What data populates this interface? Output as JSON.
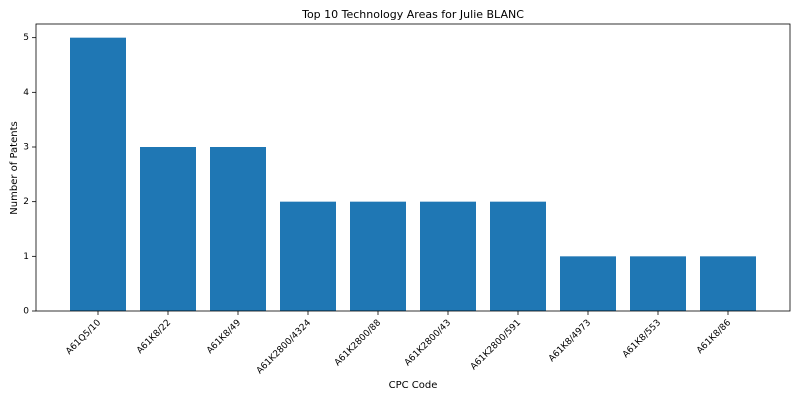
{
  "chart_data": {
    "type": "bar",
    "title": "Top 10 Technology Areas for Julie BLANC",
    "x_label": "CPC Code",
    "y_label": "Number of Patents",
    "categories": [
      "A61Q5/10",
      "A61K8/22",
      "A61K8/49",
      "A61K2800/4324",
      "A61K2800/88",
      "A61K2800/43",
      "A61K2800/591",
      "A61K8/4973",
      "A61K8/553",
      "A61K8/86"
    ],
    "values": [
      5,
      3,
      3,
      2,
      2,
      2,
      2,
      1,
      1,
      1
    ],
    "color": "#1f77b4",
    "ylim": [
      0,
      5.25
    ],
    "yticks": [
      0,
      1,
      2,
      3,
      4,
      5
    ],
    "grid": false
  }
}
